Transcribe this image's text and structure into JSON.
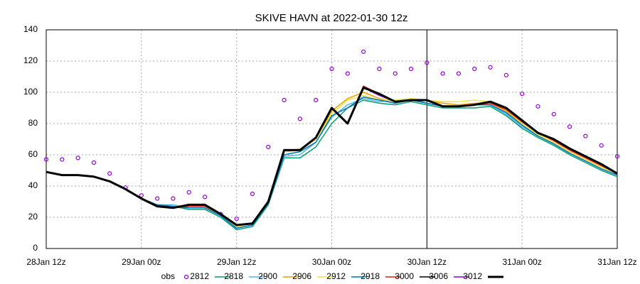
{
  "chart_data": {
    "type": "line",
    "title": "SKIVE HAVN at 2022-01-30 12z",
    "x": [
      0,
      2,
      4,
      6,
      8,
      10,
      12,
      14,
      16,
      18,
      20,
      22,
      24,
      26,
      28,
      30,
      32,
      34,
      36,
      38,
      40,
      42,
      44,
      46,
      48,
      50,
      52,
      54,
      56,
      58,
      60,
      62,
      64,
      66,
      68,
      70,
      72
    ],
    "xlim": [
      0,
      72
    ],
    "xticks": [
      {
        "value": 0,
        "label": "28Jan 12z"
      },
      {
        "value": 12,
        "label": "29Jan 00z"
      },
      {
        "value": 24,
        "label": "29Jan 12z"
      },
      {
        "value": 36,
        "label": "30Jan 00z"
      },
      {
        "value": 48,
        "label": "30Jan 12z"
      },
      {
        "value": 60,
        "label": "31Jan 00z"
      },
      {
        "value": 72,
        "label": "31Jan 12z"
      }
    ],
    "ylim": [
      0,
      140
    ],
    "yticks": [
      0,
      20,
      40,
      60,
      80,
      100,
      120,
      140
    ],
    "grid": true,
    "vline": 48,
    "legend": "bottom",
    "series": [
      {
        "name": "obs",
        "color": "#9400d3",
        "marker": "circle",
        "values": [
          57,
          57,
          58,
          55,
          48,
          39,
          34,
          32,
          32,
          36,
          33,
          22,
          19,
          35,
          65,
          95,
          83,
          95,
          115,
          112,
          126,
          115,
          112,
          115,
          119,
          112,
          112,
          115,
          116,
          111,
          99,
          91,
          86,
          78,
          72,
          66,
          59
        ]
      },
      {
        "name": "2812",
        "color": "#009e73",
        "values": [
          49,
          47,
          47,
          46,
          43,
          38,
          32,
          28,
          27,
          25,
          25,
          20,
          12,
          14,
          28,
          58,
          58,
          65,
          80,
          90,
          95,
          93,
          92,
          94,
          92,
          90,
          90,
          90,
          91,
          85,
          77,
          71,
          66,
          60,
          55,
          50,
          46
        ]
      },
      {
        "name": "2818",
        "color": "#56b4e9",
        "values": [
          49,
          47,
          47,
          46,
          43,
          38,
          32,
          28,
          28,
          26,
          26,
          21,
          13,
          15,
          29,
          59,
          60,
          68,
          84,
          92,
          96,
          94,
          95,
          96,
          93,
          91,
          91,
          92,
          92,
          86,
          78,
          72,
          67,
          61,
          56,
          51,
          47
        ]
      },
      {
        "name": "2900",
        "color": "#e69f00",
        "values": [
          49,
          47,
          47,
          46,
          43,
          38,
          32,
          28,
          27,
          26,
          26,
          22,
          14,
          16,
          30,
          62,
          63,
          70,
          88,
          96,
          100,
          96,
          94,
          95,
          95,
          93,
          92,
          93,
          93,
          88,
          80,
          73,
          68,
          62,
          57,
          52,
          48
        ]
      },
      {
        "name": "2906",
        "color": "#f0e442",
        "values": [
          49,
          47,
          47,
          46,
          43,
          38,
          32,
          28,
          27,
          26,
          26,
          22,
          14,
          16,
          30,
          62,
          64,
          70,
          86,
          95,
          98,
          95,
          95,
          96,
          95,
          94,
          94,
          95,
          94,
          89,
          80,
          73,
          68,
          62,
          57,
          52,
          48
        ]
      },
      {
        "name": "2912",
        "color": "#0072b2",
        "values": [
          49,
          47,
          47,
          46,
          43,
          38,
          32,
          28,
          27,
          26,
          26,
          21,
          13,
          15,
          29,
          60,
          62,
          68,
          85,
          90,
          97,
          95,
          93,
          95,
          93,
          91,
          91,
          92,
          92,
          87,
          79,
          72,
          67,
          61,
          56,
          51,
          47
        ]
      },
      {
        "name": "2918",
        "color": "#e51e10",
        "values": [
          49,
          47,
          47,
          46,
          43,
          38,
          32,
          27,
          26,
          27,
          27,
          22,
          15,
          16,
          30,
          63,
          63,
          71,
          90,
          80,
          104,
          99,
          94,
          95,
          95,
          91,
          91,
          92,
          93,
          89,
          81,
          74,
          69,
          63,
          58,
          53,
          48
        ]
      },
      {
        "name": "3000",
        "color": "#000000",
        "values": [
          49,
          47,
          47,
          46,
          43,
          38,
          32,
          27,
          26,
          28,
          28,
          22,
          15,
          16,
          30,
          63,
          63,
          71,
          90,
          80,
          103,
          99,
          94,
          95,
          95,
          91,
          91,
          92,
          94,
          90,
          82,
          74,
          70,
          64,
          59,
          54,
          48
        ]
      },
      {
        "name": "3006",
        "color": "#9400d3",
        "values": [
          49,
          47,
          47,
          46,
          43,
          38,
          32,
          27,
          26,
          28,
          28,
          22,
          15,
          16,
          30,
          63,
          63,
          71,
          90,
          80,
          103,
          98,
          94,
          95,
          95,
          91,
          91,
          92,
          94,
          90,
          82,
          74,
          70,
          64,
          59,
          54,
          48
        ]
      },
      {
        "name": "3012",
        "color": "#000000",
        "width": 3,
        "values": [
          49,
          47,
          47,
          46,
          43,
          38,
          32,
          27,
          26,
          28,
          28,
          22,
          15,
          16,
          30,
          63,
          63,
          71,
          90,
          80,
          103,
          99,
          94,
          95,
          95,
          91,
          91,
          92,
          94,
          90,
          82,
          74,
          70,
          64,
          59,
          54,
          48
        ]
      }
    ]
  }
}
